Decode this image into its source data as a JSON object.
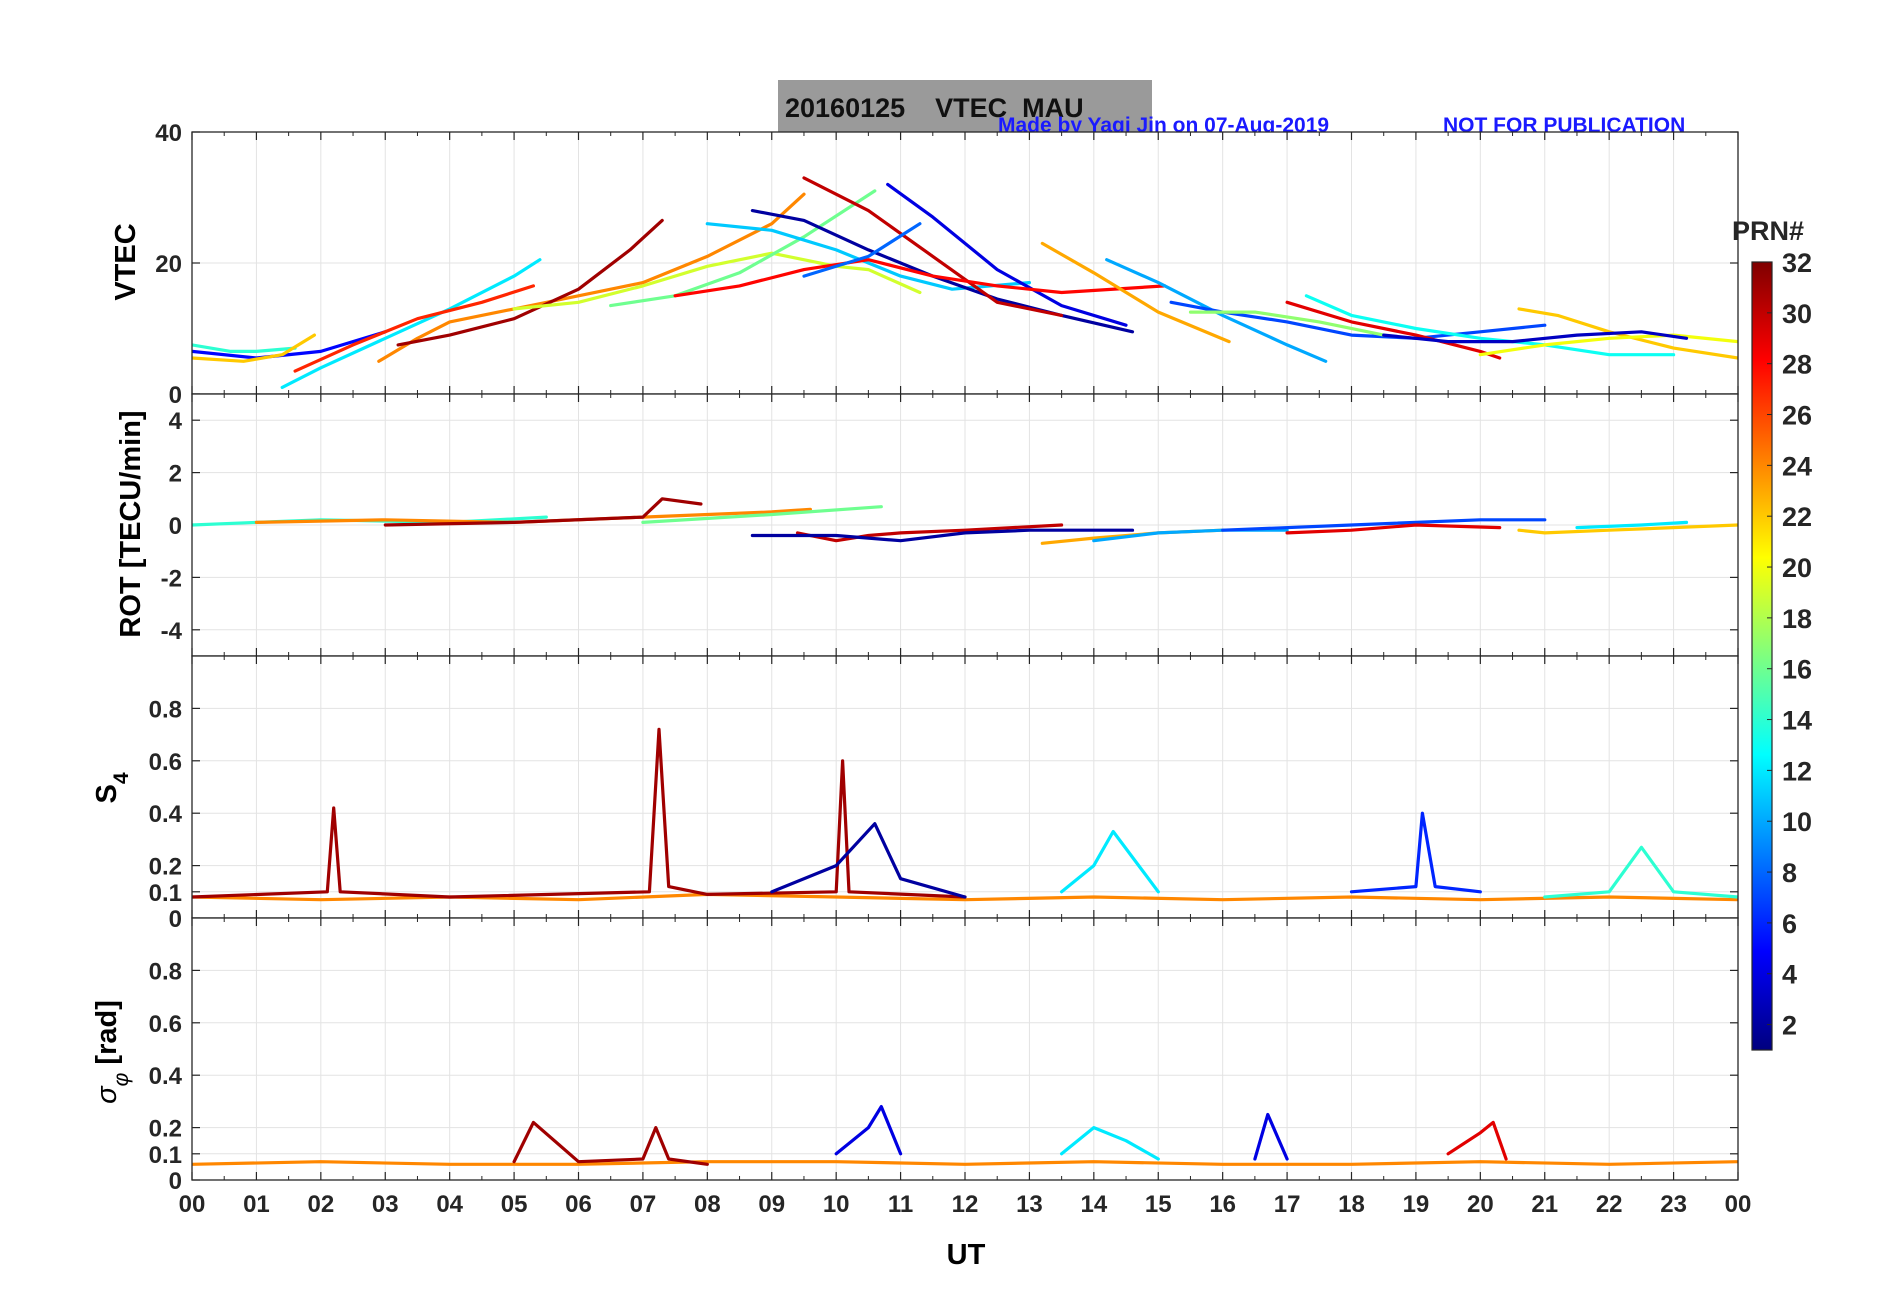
{
  "header": {
    "title": "20160125    VTEC  MAU",
    "credit": "Made by Yaqi Jin on 07-Aug-2019",
    "notice": "NOT FOR PUBLICATION"
  },
  "colors": {
    "title_box": "#9a9a9a",
    "credit_text": "#1a1aff",
    "axis": "#262626",
    "grid": "#e3e3e3",
    "jet_stops": [
      "#00007f",
      "#0000ff",
      "#007fff",
      "#00ffff",
      "#7fff7f",
      "#ffff00",
      "#ff7f00",
      "#ff0000",
      "#7f0000"
    ]
  },
  "chart_data": [
    {
      "id": "vtec",
      "type": "line",
      "ylabel": "VTEC",
      "ylim": [
        0,
        40
      ],
      "yticks": [
        0,
        20,
        40
      ],
      "series": [
        {
          "prn": 5,
          "x": [
            0.0,
            1.0,
            2.0,
            3.0
          ],
          "y": [
            6.5,
            5.5,
            6.5,
            9.5
          ]
        },
        {
          "prn": 14,
          "x": [
            0.0,
            0.6,
            1.0,
            1.6
          ],
          "y": [
            7.5,
            6.5,
            6.5,
            7.0
          ]
        },
        {
          "prn": 22,
          "x": [
            0.0,
            0.8,
            1.4,
            1.9
          ],
          "y": [
            5.5,
            5.0,
            6.0,
            9.0
          ]
        },
        {
          "prn": 12,
          "x": [
            1.4,
            2.0,
            3.0,
            4.0,
            5.0,
            5.4
          ],
          "y": [
            1.0,
            4.0,
            8.5,
            13.0,
            18.0,
            20.5
          ]
        },
        {
          "prn": 24,
          "x": [
            2.9,
            3.5,
            4.0,
            5.0,
            6.0,
            7.0,
            8.0,
            9.0,
            9.5
          ],
          "y": [
            5.0,
            8.5,
            11.0,
            13.0,
            15.0,
            17.0,
            21.0,
            26.0,
            30.5
          ]
        },
        {
          "prn": 27,
          "x": [
            1.6,
            2.5,
            3.5,
            4.5,
            5.3
          ],
          "y": [
            3.5,
            7.5,
            11.5,
            14.0,
            16.5
          ]
        },
        {
          "prn": 31,
          "x": [
            3.2,
            4.0,
            5.0,
            6.0,
            6.8,
            7.3
          ],
          "y": [
            7.5,
            9.0,
            11.5,
            16.0,
            22.0,
            26.5
          ]
        },
        {
          "prn": 19,
          "x": [
            5.0,
            6.0,
            7.0,
            8.0,
            9.0,
            10.0,
            10.5,
            11.3
          ],
          "y": [
            13.0,
            14.0,
            16.5,
            19.5,
            21.5,
            19.5,
            19.0,
            15.5
          ]
        },
        {
          "prn": 16,
          "x": [
            6.5,
            7.5,
            8.5,
            9.5,
            10.6
          ],
          "y": [
            13.5,
            15.0,
            18.5,
            24.0,
            31.0
          ]
        },
        {
          "prn": 11,
          "x": [
            8.0,
            9.0,
            10.0,
            11.0,
            11.8,
            13.0
          ],
          "y": [
            26.0,
            25.0,
            22.0,
            18.0,
            16.0,
            17.0
          ]
        },
        {
          "prn": 2,
          "x": [
            8.7,
            9.5,
            10.5,
            11.5,
            12.5,
            13.5,
            14.6
          ],
          "y": [
            28.0,
            26.5,
            22.0,
            18.0,
            14.5,
            12.0,
            9.5
          ]
        },
        {
          "prn": 30,
          "x": [
            9.5,
            10.5,
            11.5,
            12.5,
            13.5
          ],
          "y": [
            33.0,
            28.0,
            21.0,
            14.0,
            12.0
          ]
        },
        {
          "prn": 4,
          "x": [
            10.8,
            11.5,
            12.5,
            13.5,
            14.5
          ],
          "y": [
            32.0,
            27.0,
            19.0,
            13.5,
            10.5
          ]
        },
        {
          "prn": 28,
          "x": [
            7.5,
            8.5,
            9.5,
            10.5,
            11.5,
            12.5,
            13.5,
            15.1
          ],
          "y": [
            15.0,
            16.5,
            19.0,
            20.5,
            18.0,
            16.5,
            15.5,
            16.5
          ]
        },
        {
          "prn": 8,
          "x": [
            9.5,
            10.5,
            11.3
          ],
          "y": [
            18.0,
            21.0,
            26.0
          ]
        },
        {
          "prn": 23,
          "x": [
            13.2,
            14.0,
            15.0,
            16.1
          ],
          "y": [
            23.0,
            18.5,
            12.5,
            8.0
          ]
        },
        {
          "prn": 10,
          "x": [
            14.2,
            15.0,
            16.0,
            17.0,
            17.6
          ],
          "y": [
            20.5,
            17.0,
            12.0,
            7.5,
            5.0
          ]
        },
        {
          "prn": 7,
          "x": [
            15.2,
            16.0,
            17.0,
            18.0,
            19.0,
            20.0,
            21.0
          ],
          "y": [
            14.0,
            12.5,
            11.0,
            9.0,
            8.5,
            9.5,
            10.5
          ]
        },
        {
          "prn": 17,
          "x": [
            15.5,
            16.5,
            17.5,
            18.5
          ],
          "y": [
            12.5,
            12.5,
            11.0,
            9.0
          ]
        },
        {
          "prn": 13,
          "x": [
            17.3,
            18.0,
            19.0,
            20.0,
            21.0,
            22.0,
            23.0
          ],
          "y": [
            15.0,
            12.0,
            10.0,
            8.5,
            7.5,
            6.0,
            6.0
          ]
        },
        {
          "prn": 29,
          "x": [
            17.0,
            18.0,
            19.0,
            20.0,
            20.3
          ],
          "y": [
            14.0,
            11.0,
            9.0,
            6.5,
            5.5
          ]
        },
        {
          "prn": 22,
          "x": [
            20.6,
            21.2,
            22.0,
            23.0,
            24.0
          ],
          "y": [
            13.0,
            12.0,
            9.5,
            7.0,
            5.5
          ]
        },
        {
          "prn": 20,
          "x": [
            20.0,
            21.0,
            22.0,
            23.0,
            24.0
          ],
          "y": [
            6.0,
            7.5,
            8.5,
            9.0,
            8.0
          ]
        },
        {
          "prn": 3,
          "x": [
            18.5,
            19.5,
            20.5,
            21.5,
            22.5,
            23.2
          ],
          "y": [
            9.0,
            8.0,
            8.0,
            9.0,
            9.5,
            8.5
          ]
        }
      ]
    },
    {
      "id": "rot",
      "type": "line",
      "ylabel": "ROT [TECU/min]",
      "ylim": [
        -5,
        5
      ],
      "yticks": [
        -4,
        -2,
        0,
        2,
        4
      ],
      "series": [
        {
          "prn": 14,
          "x": [
            0.0,
            2.0,
            4.0,
            5.5
          ],
          "y": [
            0.0,
            0.2,
            0.1,
            0.3
          ]
        },
        {
          "prn": 24,
          "x": [
            1.0,
            3.0,
            5.0,
            7.0,
            9.0,
            9.6
          ],
          "y": [
            0.1,
            0.2,
            0.1,
            0.3,
            0.5,
            0.6
          ]
        },
        {
          "prn": 31,
          "x": [
            3.0,
            5.0,
            7.0,
            7.3,
            7.9
          ],
          "y": [
            0.0,
            0.1,
            0.3,
            1.0,
            0.8
          ]
        },
        {
          "prn": 16,
          "x": [
            7.0,
            9.0,
            10.7
          ],
          "y": [
            0.1,
            0.4,
            0.7
          ]
        },
        {
          "prn": 30,
          "x": [
            9.4,
            10.0,
            10.5,
            11.0,
            12.0,
            13.5
          ],
          "y": [
            -0.3,
            -0.6,
            -0.4,
            -0.3,
            -0.2,
            0.0
          ]
        },
        {
          "prn": 2,
          "x": [
            8.7,
            10.0,
            11.0,
            12.0,
            13.0,
            14.6
          ],
          "y": [
            -0.4,
            -0.4,
            -0.6,
            -0.3,
            -0.2,
            -0.2
          ]
        },
        {
          "prn": 23,
          "x": [
            13.2,
            14.0,
            15.0,
            16.0
          ],
          "y": [
            -0.7,
            -0.5,
            -0.3,
            -0.2
          ]
        },
        {
          "prn": 10,
          "x": [
            14.0,
            15.0,
            16.0,
            17.0
          ],
          "y": [
            -0.6,
            -0.3,
            -0.2,
            -0.2
          ]
        },
        {
          "prn": 7,
          "x": [
            16.0,
            18.0,
            20.0,
            21.0
          ],
          "y": [
            -0.2,
            0.0,
            0.2,
            0.2
          ]
        },
        {
          "prn": 29,
          "x": [
            17.0,
            18.0,
            19.0,
            20.3
          ],
          "y": [
            -0.3,
            -0.2,
            0.0,
            -0.1
          ]
        },
        {
          "prn": 22,
          "x": [
            20.6,
            21.0,
            22.0,
            24.0
          ],
          "y": [
            -0.2,
            -0.3,
            -0.2,
            0.0
          ]
        },
        {
          "prn": 12,
          "x": [
            21.5,
            22.5,
            23.2
          ],
          "y": [
            -0.1,
            0.0,
            0.1
          ]
        }
      ]
    },
    {
      "id": "s4",
      "type": "line",
      "ylabel": "S4",
      "ylim": [
        0,
        1
      ],
      "yticks": [
        0,
        0.1,
        0.2,
        0.4,
        0.6,
        0.8
      ],
      "series": [
        {
          "prn": 24,
          "x": [
            0.0,
            2.0,
            4.0,
            6.0,
            8.0,
            10.0,
            12.0,
            14.0,
            16.0,
            18.0,
            20.0,
            22.0,
            24.0
          ],
          "y": [
            0.08,
            0.07,
            0.08,
            0.07,
            0.09,
            0.08,
            0.07,
            0.08,
            0.07,
            0.08,
            0.07,
            0.08,
            0.07
          ]
        },
        {
          "prn": 31,
          "x": [
            0.0,
            2.1,
            2.2,
            2.3,
            4.0,
            7.1,
            7.25,
            7.4,
            8.0,
            10.0,
            10.1,
            10.2,
            12.0
          ],
          "y": [
            0.08,
            0.1,
            0.42,
            0.1,
            0.08,
            0.1,
            0.72,
            0.12,
            0.09,
            0.1,
            0.6,
            0.1,
            0.08
          ]
        },
        {
          "prn": 2,
          "x": [
            9.0,
            10.0,
            10.6,
            11.0,
            12.0
          ],
          "y": [
            0.1,
            0.2,
            0.36,
            0.15,
            0.08
          ]
        },
        {
          "prn": 6,
          "x": [
            18.0,
            19.0,
            19.1,
            19.3,
            20.0
          ],
          "y": [
            0.1,
            0.12,
            0.4,
            0.12,
            0.1
          ]
        },
        {
          "prn": 14,
          "x": [
            21.0,
            22.0,
            22.5,
            23.0,
            24.0
          ],
          "y": [
            0.08,
            0.1,
            0.27,
            0.1,
            0.08
          ]
        },
        {
          "prn": 12,
          "x": [
            13.5,
            14.0,
            14.3,
            15.0
          ],
          "y": [
            0.1,
            0.2,
            0.33,
            0.1
          ]
        }
      ]
    },
    {
      "id": "sigma_phi",
      "type": "line",
      "ylabel": "σφ [rad]",
      "ylim": [
        0,
        1
      ],
      "yticks": [
        0,
        0.1,
        0.2,
        0.4,
        0.6,
        0.8
      ],
      "series": [
        {
          "prn": 24,
          "x": [
            0.0,
            2.0,
            4.0,
            6.0,
            8.0,
            10.0,
            12.0,
            14.0,
            16.0,
            18.0,
            20.0,
            22.0,
            24.0
          ],
          "y": [
            0.06,
            0.07,
            0.06,
            0.06,
            0.07,
            0.07,
            0.06,
            0.07,
            0.06,
            0.06,
            0.07,
            0.06,
            0.07
          ]
        },
        {
          "prn": 31,
          "x": [
            5.0,
            5.3,
            6.0,
            7.0,
            7.2,
            7.4,
            8.0
          ],
          "y": [
            0.07,
            0.22,
            0.07,
            0.08,
            0.2,
            0.08,
            0.06
          ]
        },
        {
          "prn": 4,
          "x": [
            10.0,
            10.5,
            10.7,
            11.0
          ],
          "y": [
            0.1,
            0.2,
            0.28,
            0.1
          ]
        },
        {
          "prn": 4,
          "x": [
            16.5,
            16.7,
            17.0
          ],
          "y": [
            0.08,
            0.25,
            0.08
          ]
        },
        {
          "prn": 12,
          "x": [
            13.5,
            14.0,
            14.5,
            15.0
          ],
          "y": [
            0.1,
            0.2,
            0.15,
            0.08
          ]
        },
        {
          "prn": 29,
          "x": [
            19.5,
            20.0,
            20.2,
            20.4
          ],
          "y": [
            0.1,
            0.18,
            0.22,
            0.08
          ]
        }
      ]
    }
  ],
  "xaxis": {
    "label": "UT",
    "xlim": [
      0,
      24
    ],
    "tick_labels": [
      "00",
      "01",
      "02",
      "03",
      "04",
      "05",
      "06",
      "07",
      "08",
      "09",
      "10",
      "11",
      "12",
      "13",
      "14",
      "15",
      "16",
      "17",
      "18",
      "19",
      "20",
      "21",
      "22",
      "23",
      "00"
    ]
  },
  "colorbar": {
    "label": "PRN#",
    "range": [
      1,
      32
    ],
    "ticks": [
      "2",
      "4",
      "6",
      "8",
      "10",
      "12",
      "14",
      "16",
      "18",
      "20",
      "22",
      "24",
      "26",
      "28",
      "30",
      "32"
    ]
  }
}
